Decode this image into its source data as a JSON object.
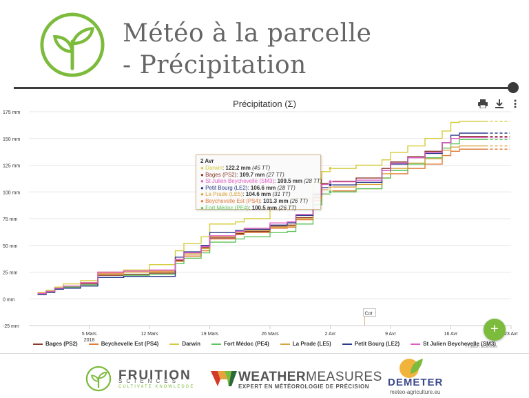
{
  "header": {
    "title_line1": "Météo à la parcelle",
    "title_line2": "- Précipitation"
  },
  "chart_data": {
    "type": "line",
    "title": "Précipitation (Σ)",
    "y_unit": "mm",
    "ylim": [
      -25,
      175
    ],
    "yticks": [
      "-25 mm",
      "0 mm",
      "25 mm",
      "50 mm",
      "75 mm",
      "100 mm",
      "125 mm",
      "150 mm",
      "175 mm"
    ],
    "ytick_values": [
      -25,
      0,
      25,
      50,
      75,
      100,
      125,
      150,
      175
    ],
    "x_start": "2018-02-26",
    "x_end": "2018-04-23",
    "xticks": [
      {
        "date": "2018-03-05",
        "label": "5 Mars",
        "sub": "2018"
      },
      {
        "date": "2018-03-12",
        "label": "12 Mars",
        "sub": ""
      },
      {
        "date": "2018-03-19",
        "label": "19 Mars",
        "sub": ""
      },
      {
        "date": "2018-03-26",
        "label": "26 Mars",
        "sub": ""
      },
      {
        "date": "2018-04-02",
        "label": "2 Avr",
        "sub": ""
      },
      {
        "date": "2018-04-09",
        "label": "9 Avr",
        "sub": ""
      },
      {
        "date": "2018-04-16",
        "label": "16 Avr",
        "sub": ""
      },
      {
        "date": "2018-04-23",
        "label": "23 Avr",
        "sub": ""
      }
    ],
    "grid": true,
    "legend_position": "bottom",
    "forecast_start": "2018-04-20",
    "annotation": {
      "date": "2018-04-06",
      "label": "Cot"
    },
    "series": [
      {
        "name": "Bages (PS2)",
        "color": "#8b3a2a",
        "x": [
          "2018-02-27",
          "2018-02-28",
          "2018-03-01",
          "2018-03-02",
          "2018-03-04",
          "2018-03-06",
          "2018-03-09",
          "2018-03-12",
          "2018-03-15",
          "2018-03-16",
          "2018-03-18",
          "2018-03-19",
          "2018-03-22",
          "2018-03-23",
          "2018-03-26",
          "2018-03-28",
          "2018-03-29",
          "2018-03-31",
          "2018-04-01",
          "2018-04-02",
          "2018-04-05",
          "2018-04-08",
          "2018-04-09",
          "2018-04-11",
          "2018-04-13",
          "2018-04-15",
          "2018-04-16",
          "2018-04-17",
          "2018-04-20"
        ],
        "y": [
          5,
          6,
          9,
          11,
          14,
          22,
          23,
          24,
          36,
          42,
          48,
          57,
          61,
          63,
          68,
          69,
          76,
          95,
          108,
          110,
          113,
          122,
          128,
          133,
          138,
          146,
          150,
          152,
          152
        ]
      },
      {
        "name": "Beychevelle Est (PS4)",
        "color": "#e07b3a",
        "x": [
          "2018-02-27",
          "2018-02-28",
          "2018-03-01",
          "2018-03-02",
          "2018-03-04",
          "2018-03-06",
          "2018-03-09",
          "2018-03-12",
          "2018-03-15",
          "2018-03-16",
          "2018-03-18",
          "2018-03-19",
          "2018-03-22",
          "2018-03-23",
          "2018-03-26",
          "2018-03-28",
          "2018-03-29",
          "2018-03-31",
          "2018-04-01",
          "2018-04-02",
          "2018-04-05",
          "2018-04-08",
          "2018-04-09",
          "2018-04-11",
          "2018-04-13",
          "2018-04-15",
          "2018-04-16",
          "2018-04-17",
          "2018-04-20"
        ],
        "y": [
          5,
          7,
          10,
          12,
          15,
          24,
          26,
          26,
          35,
          40,
          45,
          56,
          60,
          62,
          66,
          67,
          74,
          92,
          98,
          101,
          103,
          113,
          117,
          122,
          126,
          134,
          138,
          140,
          140
        ]
      },
      {
        "name": "Darwin",
        "color": "#d4cc3c",
        "x": [
          "2018-02-27",
          "2018-02-28",
          "2018-03-01",
          "2018-03-02",
          "2018-03-04",
          "2018-03-06",
          "2018-03-09",
          "2018-03-12",
          "2018-03-15",
          "2018-03-16",
          "2018-03-18",
          "2018-03-19",
          "2018-03-22",
          "2018-03-23",
          "2018-03-26",
          "2018-03-28",
          "2018-03-29",
          "2018-03-31",
          "2018-04-01",
          "2018-04-02",
          "2018-04-05",
          "2018-04-08",
          "2018-04-09",
          "2018-04-11",
          "2018-04-13",
          "2018-04-15",
          "2018-04-16",
          "2018-04-17",
          "2018-04-20"
        ],
        "y": [
          6,
          8,
          11,
          14,
          17,
          25,
          27,
          32,
          45,
          52,
          58,
          70,
          72,
          75,
          84,
          86,
          94,
          109,
          119,
          122,
          125,
          130,
          137,
          143,
          150,
          157,
          165,
          166,
          166
        ]
      },
      {
        "name": "Fort Médoc (PE4)",
        "color": "#5cc45c",
        "x": [
          "2018-02-27",
          "2018-02-28",
          "2018-03-01",
          "2018-03-02",
          "2018-03-04",
          "2018-03-06",
          "2018-03-09",
          "2018-03-12",
          "2018-03-15",
          "2018-03-16",
          "2018-03-18",
          "2018-03-19",
          "2018-03-22",
          "2018-03-23",
          "2018-03-26",
          "2018-03-28",
          "2018-03-29",
          "2018-03-31",
          "2018-04-01",
          "2018-04-02",
          "2018-04-05",
          "2018-04-08",
          "2018-04-09",
          "2018-04-11",
          "2018-04-13",
          "2018-04-15",
          "2018-04-16",
          "2018-04-17",
          "2018-04-20"
        ],
        "y": [
          4,
          6,
          9,
          11,
          13,
          20,
          22,
          23,
          33,
          38,
          43,
          53,
          56,
          58,
          62,
          63,
          70,
          88,
          98,
          100,
          103,
          113,
          120,
          126,
          132,
          141,
          145,
          149,
          149
        ]
      },
      {
        "name": "La Prade (LE5)",
        "color": "#d9a43c",
        "x": [
          "2018-02-27",
          "2018-02-28",
          "2018-03-01",
          "2018-03-02",
          "2018-03-04",
          "2018-03-06",
          "2018-03-09",
          "2018-03-12",
          "2018-03-15",
          "2018-03-16",
          "2018-03-18",
          "2018-03-19",
          "2018-03-22",
          "2018-03-23",
          "2018-03-26",
          "2018-03-28",
          "2018-03-29",
          "2018-03-31",
          "2018-04-01",
          "2018-04-02",
          "2018-04-05",
          "2018-04-08",
          "2018-04-09",
          "2018-04-11",
          "2018-04-13",
          "2018-04-15",
          "2018-04-16",
          "2018-04-17",
          "2018-04-20"
        ],
        "y": [
          5,
          7,
          10,
          12,
          15,
          23,
          25,
          25,
          37,
          42,
          47,
          58,
          62,
          64,
          67,
          68,
          75,
          94,
          102,
          104.6,
          107,
          117,
          122,
          127,
          131,
          139,
          142,
          143,
          143
        ]
      },
      {
        "name": "Petit Bourg (LE2)",
        "color": "#2a3a8a",
        "x": [
          "2018-02-27",
          "2018-02-28",
          "2018-03-01",
          "2018-03-02",
          "2018-03-04",
          "2018-03-06",
          "2018-03-09",
          "2018-03-12",
          "2018-03-15",
          "2018-03-16",
          "2018-03-18",
          "2018-03-19",
          "2018-03-22",
          "2018-03-23",
          "2018-03-26",
          "2018-03-28",
          "2018-03-29",
          "2018-03-31",
          "2018-04-01",
          "2018-04-02",
          "2018-04-05",
          "2018-04-08",
          "2018-04-09",
          "2018-04-11",
          "2018-04-13",
          "2018-04-15",
          "2018-04-16",
          "2018-04-17",
          "2018-04-20"
        ],
        "y": [
          4,
          6,
          9,
          10,
          12,
          20,
          21,
          21,
          39,
          44,
          50,
          62,
          64,
          65,
          69,
          71,
          78,
          98,
          104,
          106.6,
          109,
          120,
          126,
          132,
          136,
          146,
          153,
          155,
          155
        ]
      },
      {
        "name": "St Julien Beychevelle (SM3)",
        "color": "#e05cc4",
        "x": [
          "2018-02-27",
          "2018-02-28",
          "2018-03-01",
          "2018-03-02",
          "2018-03-04",
          "2018-03-06",
          "2018-03-09",
          "2018-03-12",
          "2018-03-15",
          "2018-03-16",
          "2018-03-18",
          "2018-03-19",
          "2018-03-22",
          "2018-03-23",
          "2018-03-26",
          "2018-03-28",
          "2018-03-29",
          "2018-03-31",
          "2018-04-01",
          "2018-04-02",
          "2018-04-05",
          "2018-04-08",
          "2018-04-09",
          "2018-04-11",
          "2018-04-13",
          "2018-04-15",
          "2018-04-16",
          "2018-04-17",
          "2018-04-20"
        ],
        "y": [
          5,
          7,
          10,
          12,
          15,
          25,
          26,
          27,
          37,
          43,
          49,
          59,
          63,
          66,
          71,
          72,
          79,
          97,
          107,
          109.5,
          111,
          120,
          127,
          132,
          137,
          146,
          150,
          151,
          151
        ]
      }
    ]
  },
  "tooltip": {
    "title": "2 Avr",
    "rows": [
      {
        "name": "Darwin",
        "value": "122.2 mm",
        "count": "(45 TT)",
        "color": "#d4cc3c"
      },
      {
        "name": "Bages (PS2)",
        "value": "109.7 mm",
        "count": "(27 TT)",
        "color": "#8b3a2a"
      },
      {
        "name": "St Julien Beychevelle (SM3)",
        "value": "109.5 mm",
        "count": "(28 TT)",
        "color": "#e05cc4"
      },
      {
        "name": "Petit Bourg (LE2)",
        "value": "106.6 mm",
        "count": "(28 TT)",
        "color": "#2a3a8a"
      },
      {
        "name": "La Prade (LE5)",
        "value": "104.6 mm",
        "count": "(31 TT)",
        "color": "#d9a43c"
      },
      {
        "name": "Beychevelle Est (PS4)",
        "value": "101.3 mm",
        "count": "(26 TT)",
        "color": "#e07b3a"
      },
      {
        "name": "Fort Médoc (PE4)",
        "value": "100.5 mm",
        "count": "(26 TT)",
        "color": "#5cc45c"
      }
    ]
  },
  "toolbar": {
    "print_icon": "printer-icon",
    "download_icon": "download-icon",
    "menu_icon": "kebab-menu-icon"
  },
  "fab": {
    "label": "+"
  },
  "credit": "Fruition Sciences",
  "footer": {
    "fruition_name": "FRUITION",
    "fruition_sub1": "SCIENCES",
    "fruition_sub2": "CULTIVATE KNOWLEDGE",
    "wm_name_a": "WEATHER",
    "wm_name_b": "MEASURES",
    "wm_sub": "EXPERT EN MÉTÉOROLOGIE DE PRÉCISION",
    "demeter_name": "DEMETER",
    "demeter_sub": "meteo-agriculture.eu"
  },
  "colors": {
    "brand_green": "#7cbb3c",
    "dark": "#3a3a3a"
  }
}
